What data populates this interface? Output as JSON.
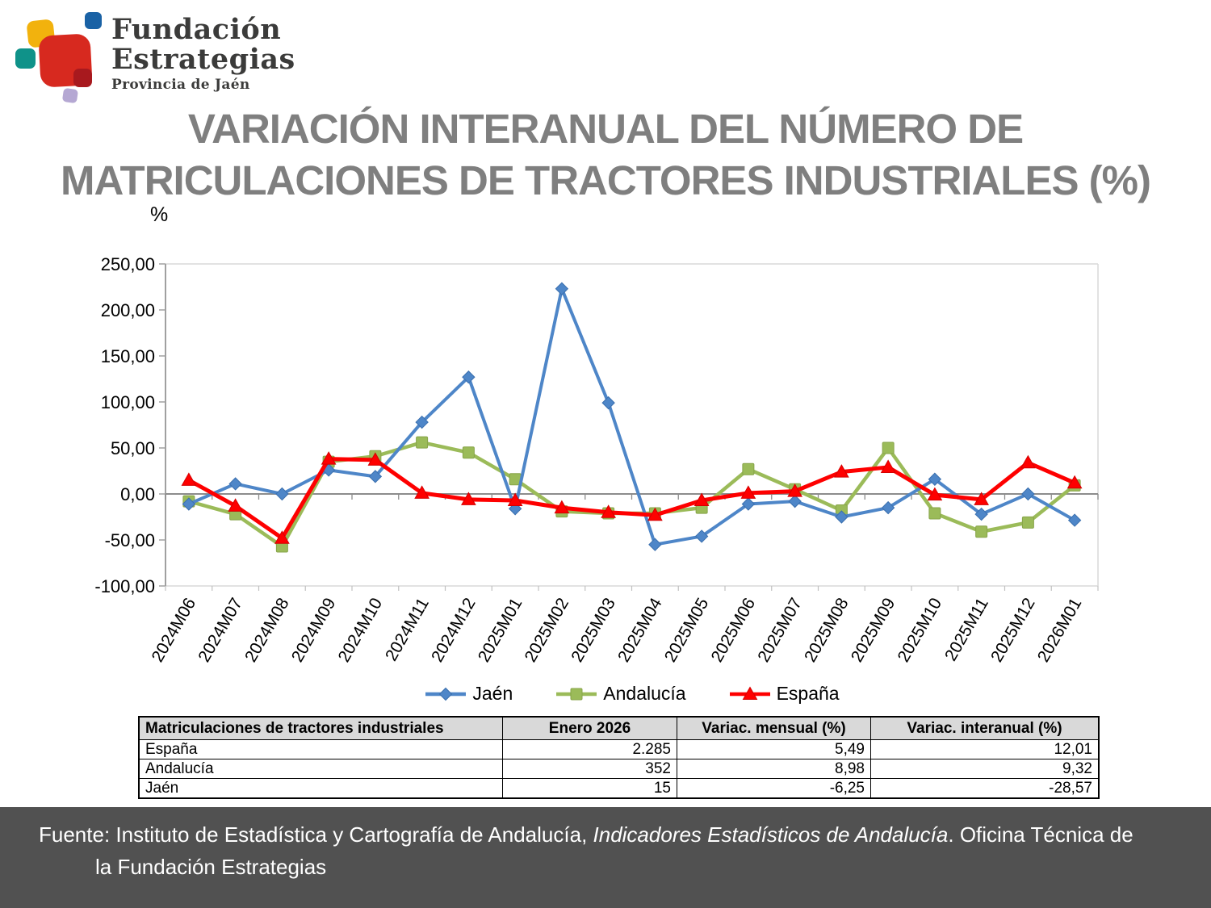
{
  "logo": {
    "line1": "Fundación",
    "line2": "Estrategias",
    "subtitle": "Provincia de Jaén",
    "colors": {
      "yellow": "#f2b20d",
      "blue": "#1a62a5",
      "teal": "#0f9289",
      "red": "#d7291f",
      "dark_red": "#a8191e",
      "purple": "#b5a8d3"
    }
  },
  "title": {
    "line1": "VARIACIÓN INTERANUAL DEL NÚMERO DE",
    "line2": "MATRICULACIONES DE TRACTORES INDUSTRIALES (%)"
  },
  "chart_data": {
    "type": "line",
    "unit_label": "%",
    "categories": [
      "2024M06",
      "2024M07",
      "2024M08",
      "2024M09",
      "2024M10",
      "2024M11",
      "2024M12",
      "2025M01",
      "2025M02",
      "2025M03",
      "2025M04",
      "2025M05",
      "2025M06",
      "2025M07",
      "2025M08",
      "2025M09",
      "2025M10",
      "2025M11",
      "2025M12",
      "2026M01"
    ],
    "series": [
      {
        "name": "Andalucía",
        "color": "#9bbb59",
        "edge": "#87a449",
        "marker": "square",
        "line_width": 4.5,
        "values": [
          -8,
          -22,
          -57,
          35,
          41,
          56,
          45,
          16,
          -19,
          -21,
          -21,
          -15,
          27,
          5,
          -18,
          50,
          -21,
          -41,
          -31,
          9.32
        ]
      },
      {
        "name": "Jaén",
        "color": "#4e86c8",
        "edge": "#3a6fae",
        "marker": "diamond",
        "line_width": 4,
        "values": [
          -11,
          11,
          0,
          26,
          19,
          78,
          127,
          -16,
          223,
          99,
          -55,
          -46,
          -11,
          -8,
          -25,
          -15,
          16,
          -22,
          0,
          -28.57
        ]
      },
      {
        "name": "España",
        "color": "#fe0000",
        "edge": "#d40000",
        "marker": "triangle",
        "line_width": 5,
        "values": [
          15,
          -13,
          -48,
          38,
          37,
          1,
          -6,
          -7,
          -15,
          -20,
          -23,
          -7,
          1,
          3,
          24,
          29,
          -1,
          -6,
          34,
          12.01
        ]
      }
    ],
    "legend_order": [
      "Jaén",
      "Andalucía",
      "España"
    ],
    "ylim": [
      -100,
      250
    ],
    "ytick_step": 50,
    "ytick_labels": [
      "250,00",
      "200,00",
      "150,00",
      "100,00",
      "50,00",
      "0,00",
      "-50,00",
      "-100,00"
    ],
    "grid": "off",
    "legend_position": "bottom"
  },
  "table": {
    "headers": [
      "Matriculaciones de tractores industriales",
      "Enero 2026",
      "Variac. mensual (%)",
      "Variac. interanual (%)"
    ],
    "rows": [
      [
        "España",
        "2.285",
        "5,49",
        "12,01"
      ],
      [
        "Andalucía",
        "352",
        "8,98",
        "9,32"
      ],
      [
        "Jaén",
        "15",
        "-6,25",
        "-28,57"
      ]
    ]
  },
  "footer": {
    "prefix": "Fuente: Instituto de Estadística y Cartografía de Andalucía, ",
    "italic": "Indicadores Estadísticos de Andalucía",
    "suffix": ". Oficina Técnica de",
    "line2": "la Fundación Estrategias"
  }
}
